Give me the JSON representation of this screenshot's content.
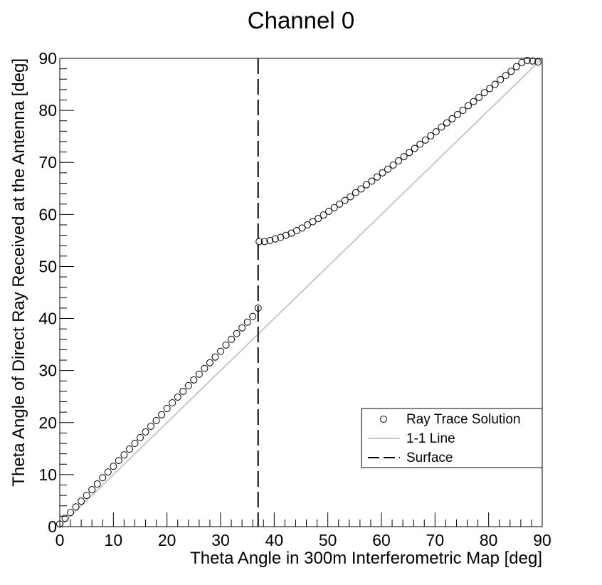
{
  "chart_data": {
    "type": "scatter",
    "title": "Channel 0",
    "xlabel": "Theta Angle in 300m Interferometric Map [deg]",
    "ylabel": "Theta Angle of Direct Ray Received at the Antenna [deg]",
    "xlim": [
      0,
      90
    ],
    "ylim": [
      0,
      90
    ],
    "x_ticks": [
      "0",
      "10",
      "20",
      "30",
      "40",
      "50",
      "60",
      "70",
      "80",
      "90"
    ],
    "y_ticks": [
      "0",
      "10",
      "20",
      "30",
      "40",
      "50",
      "60",
      "70",
      "80",
      "90"
    ],
    "grid": false,
    "legend_position": "lower-right",
    "series": [
      {
        "name": "Ray Trace Solution",
        "kind": "markers",
        "marker": "open-circle",
        "color": "#000000",
        "points": [
          [
            0,
            0.5
          ],
          [
            1,
            1.6
          ],
          [
            2,
            2.7
          ],
          [
            3,
            3.8
          ],
          [
            4,
            4.9
          ],
          [
            5,
            6.0
          ],
          [
            6,
            7.1
          ],
          [
            7,
            8.2
          ],
          [
            8,
            9.4
          ],
          [
            9,
            10.5
          ],
          [
            10,
            11.6
          ],
          [
            11,
            12.7
          ],
          [
            12,
            13.8
          ],
          [
            13,
            14.9
          ],
          [
            14,
            16.0
          ],
          [
            15,
            17.1
          ],
          [
            16,
            18.2
          ],
          [
            17,
            19.3
          ],
          [
            18,
            20.4
          ],
          [
            19,
            21.5
          ],
          [
            20,
            22.7
          ],
          [
            21,
            23.8
          ],
          [
            22,
            24.9
          ],
          [
            23,
            26.0
          ],
          [
            24,
            27.1
          ],
          [
            25,
            28.2
          ],
          [
            26,
            29.3
          ],
          [
            27,
            30.4
          ],
          [
            28,
            31.5
          ],
          [
            29,
            32.6
          ],
          [
            30,
            33.7
          ],
          [
            31,
            34.9
          ],
          [
            32,
            36.0
          ],
          [
            33,
            37.1
          ],
          [
            34,
            38.2
          ],
          [
            35,
            39.3
          ],
          [
            36,
            40.4
          ],
          [
            37,
            42.0
          ],
          [
            37.2,
            54.8
          ],
          [
            38.2,
            54.8
          ],
          [
            39.2,
            55.0
          ],
          [
            40.2,
            55.3
          ],
          [
            41.2,
            55.6
          ],
          [
            42.2,
            56.0
          ],
          [
            43.2,
            56.4
          ],
          [
            44.2,
            56.9
          ],
          [
            45.2,
            57.4
          ],
          [
            46.2,
            58.0
          ],
          [
            47.2,
            58.6
          ],
          [
            48.2,
            59.2
          ],
          [
            49.2,
            59.9
          ],
          [
            50.2,
            60.6
          ],
          [
            51.2,
            61.3
          ],
          [
            52.2,
            62.0
          ],
          [
            53.2,
            62.7
          ],
          [
            54.2,
            63.4
          ],
          [
            55.2,
            64.2
          ],
          [
            56.2,
            64.9
          ],
          [
            57.2,
            65.7
          ],
          [
            58.2,
            66.4
          ],
          [
            59.2,
            67.2
          ],
          [
            60.2,
            68.0
          ],
          [
            61.2,
            68.7
          ],
          [
            62.2,
            69.5
          ],
          [
            63.2,
            70.3
          ],
          [
            64.2,
            71.1
          ],
          [
            65.2,
            71.9
          ],
          [
            66.2,
            72.7
          ],
          [
            67.2,
            73.5
          ],
          [
            68.2,
            74.3
          ],
          [
            69.2,
            75.1
          ],
          [
            70.2,
            75.9
          ],
          [
            71.2,
            76.8
          ],
          [
            72.2,
            77.6
          ],
          [
            73.2,
            78.4
          ],
          [
            74.2,
            79.2
          ],
          [
            75.2,
            80.0
          ],
          [
            76.2,
            80.9
          ],
          [
            77.2,
            81.7
          ],
          [
            78.2,
            82.5
          ],
          [
            79.2,
            83.4
          ],
          [
            80.2,
            84.2
          ],
          [
            81.2,
            85.0
          ],
          [
            82.2,
            85.9
          ],
          [
            83.2,
            86.7
          ],
          [
            84.2,
            87.5
          ],
          [
            85.2,
            88.4
          ],
          [
            86.2,
            89.2
          ],
          [
            87.2,
            89.6
          ],
          [
            88.2,
            89.5
          ],
          [
            89.2,
            89.3
          ]
        ]
      },
      {
        "name": "1-1 Line",
        "kind": "line",
        "color": "#c8c8c8",
        "points": [
          [
            0,
            0
          ],
          [
            90,
            90
          ]
        ]
      },
      {
        "name": "Surface",
        "kind": "vline-dashed",
        "color": "#000000",
        "x": 37
      }
    ],
    "legend": [
      "Ray Trace Solution",
      "1-1 Line",
      "Surface"
    ]
  }
}
